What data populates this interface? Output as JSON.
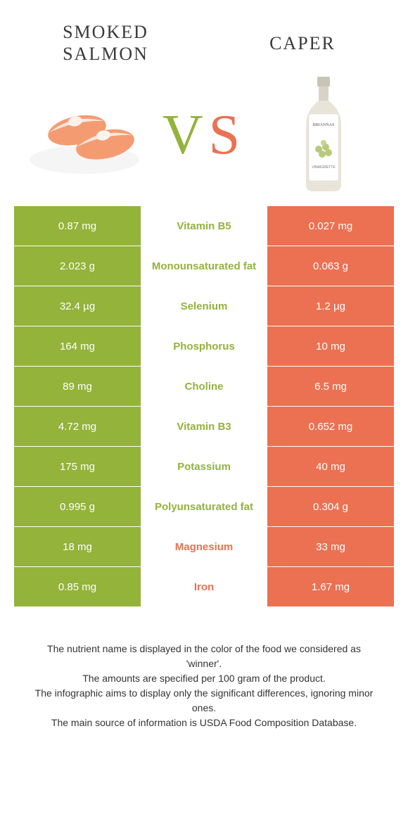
{
  "colors": {
    "left": "#93b33a",
    "right": "#eb7152",
    "salmon_body": "#f59b72",
    "salmon_light": "#fce0d0",
    "plate": "#f5f5f5",
    "bottle_body": "#e8e4d8",
    "bottle_label": "#ffffff",
    "bottle_cap": "#c9c4b5",
    "grapes": "#b8c97a"
  },
  "header": {
    "left_title_line1": "SMOKED",
    "left_title_line2": "SALMON",
    "right_title": "CAPER",
    "vs_v": "V",
    "vs_s": "S"
  },
  "rows": [
    {
      "left": "0.87 mg",
      "mid": "Vitamin B5",
      "right": "0.027 mg",
      "winner": "left"
    },
    {
      "left": "2.023 g",
      "mid": "Monounsaturated fat",
      "right": "0.063 g",
      "winner": "left"
    },
    {
      "left": "32.4 µg",
      "mid": "Selenium",
      "right": "1.2 µg",
      "winner": "left"
    },
    {
      "left": "164 mg",
      "mid": "Phosphorus",
      "right": "10 mg",
      "winner": "left"
    },
    {
      "left": "89 mg",
      "mid": "Choline",
      "right": "6.5 mg",
      "winner": "left"
    },
    {
      "left": "4.72 mg",
      "mid": "Vitamin B3",
      "right": "0.652 mg",
      "winner": "left"
    },
    {
      "left": "175 mg",
      "mid": "Potassium",
      "right": "40 mg",
      "winner": "left"
    },
    {
      "left": "0.995 g",
      "mid": "Polyunsaturated fat",
      "right": "0.304 g",
      "winner": "left"
    },
    {
      "left": "18 mg",
      "mid": "Magnesium",
      "right": "33 mg",
      "winner": "right"
    },
    {
      "left": "0.85 mg",
      "mid": "Iron",
      "right": "1.67 mg",
      "winner": "right"
    }
  ],
  "footer": {
    "line1": "The nutrient name is displayed in the color of the food we considered as 'winner'.",
    "line2": "The amounts are specified per 100 gram of the product.",
    "line3": "The infographic aims to display only the significant differences, ignoring minor ones.",
    "line4": "The main source of information is USDA Food Composition Database."
  }
}
